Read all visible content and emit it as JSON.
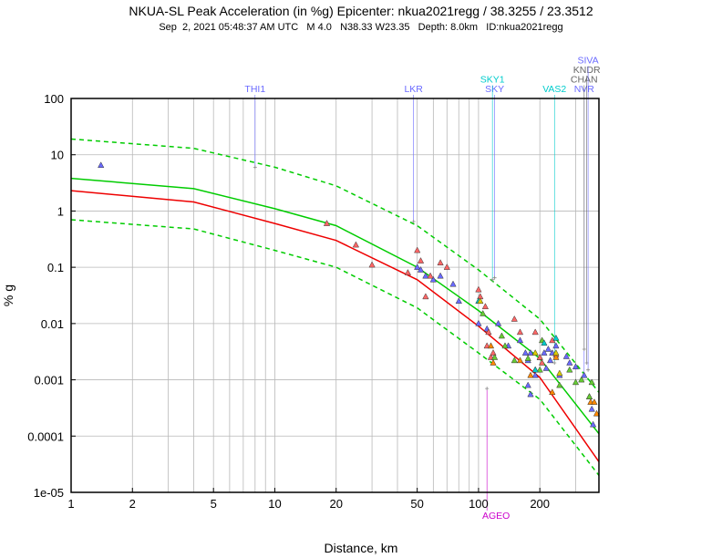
{
  "chart_data": {
    "type": "scatter",
    "title": "NKUA-SL Peak Acceleration (in %g) Epicenter: nkua2021regg / 38.3255 / 23.3512",
    "subtitle": "Sep  2, 2021 05:48:37 AM UTC   M 4.0   N38.33 W23.35   Depth: 8.0km   ID:nkua2021regg",
    "xlabel": "Distance, km",
    "ylabel": "% g",
    "x_scale": "log",
    "y_scale": "log",
    "xlim": [
      1,
      390
    ],
    "ylim": [
      1e-05,
      100
    ],
    "grid": true,
    "x_ticks": [
      {
        "value": 1,
        "label": "1"
      },
      {
        "value": 2,
        "label": "2"
      },
      {
        "value": 5,
        "label": "5"
      },
      {
        "value": 10,
        "label": "10"
      },
      {
        "value": 20,
        "label": "20"
      },
      {
        "value": 50,
        "label": "50"
      },
      {
        "value": 100,
        "label": "100"
      },
      {
        "value": 200,
        "label": "200"
      }
    ],
    "y_ticks": [
      {
        "value": 1e-05,
        "label": "1e-05"
      },
      {
        "value": 0.0001,
        "label": "0.0001"
      },
      {
        "value": 0.001,
        "label": "0.001"
      },
      {
        "value": 0.01,
        "label": "0.01"
      },
      {
        "value": 0.1,
        "label": "0.1"
      },
      {
        "value": 1,
        "label": "1"
      },
      {
        "value": 10,
        "label": "10"
      },
      {
        "value": 100,
        "label": "100"
      }
    ],
    "curves": [
      {
        "color": "#00cc00",
        "dash": false,
        "points": [
          [
            1,
            3.8
          ],
          [
            4,
            2.5
          ],
          [
            10,
            1.1
          ],
          [
            20,
            0.55
          ],
          [
            50,
            0.1
          ],
          [
            100,
            0.017
          ],
          [
            200,
            0.0024
          ],
          [
            390,
            0.00011
          ]
        ]
      },
      {
        "color": "#00cc00",
        "dash": true,
        "points": [
          [
            1,
            19
          ],
          [
            4,
            13
          ],
          [
            10,
            6
          ],
          [
            20,
            2.8
          ],
          [
            50,
            0.55
          ],
          [
            100,
            0.09
          ],
          [
            200,
            0.012
          ],
          [
            390,
            0.0006
          ]
        ]
      },
      {
        "color": "#00cc00",
        "dash": true,
        "points": [
          [
            1,
            0.7
          ],
          [
            4,
            0.48
          ],
          [
            10,
            0.2
          ],
          [
            20,
            0.1
          ],
          [
            50,
            0.019
          ],
          [
            100,
            0.003
          ],
          [
            200,
            0.00045
          ],
          [
            390,
            2e-05
          ]
        ]
      },
      {
        "color": "#ee0000",
        "dash": false,
        "points": [
          [
            1,
            2.3
          ],
          [
            4,
            1.45
          ],
          [
            10,
            0.6
          ],
          [
            20,
            0.3
          ],
          [
            50,
            0.06
          ],
          [
            100,
            0.009
          ],
          [
            200,
            0.0011
          ],
          [
            390,
            3.5e-05
          ]
        ]
      }
    ],
    "labeled_stations": [
      {
        "code": "THI1",
        "distance": 8,
        "pga": 6,
        "color": "#6a6aff",
        "label_row": 0
      },
      {
        "code": "LKR",
        "distance": 48,
        "pga": 0.65,
        "color": "#6a6aff",
        "label_row": 0
      },
      {
        "code": "SKY",
        "distance": 120,
        "pga": 0.065,
        "color": "#6a6aff",
        "label_row": 0
      },
      {
        "code": "SKY1",
        "distance": 117,
        "pga": 0.06,
        "color": "#00cccc",
        "label_row": 1
      },
      {
        "code": "VAS2",
        "distance": 236,
        "pga": 0.002,
        "color": "#00cccc",
        "label_row": 0
      },
      {
        "code": "NVR",
        "distance": 330,
        "pga": 0.0012,
        "color": "#6a6aff",
        "label_row": 0
      },
      {
        "code": "CHAN",
        "distance": 330,
        "pga": 0.0035,
        "color": "#666666",
        "label_row": 1
      },
      {
        "code": "KNDR",
        "distance": 340,
        "pga": 0.002,
        "color": "#666666",
        "label_row": 2
      },
      {
        "code": "SIVA",
        "distance": 345,
        "pga": 0.0015,
        "color": "#6a6aff",
        "label_row": 3
      },
      {
        "code": "AGEO",
        "distance": 110,
        "pga": 0.0007,
        "color": "#cc00cc",
        "label_row": -1
      }
    ],
    "series": [
      {
        "name": "",
        "color": "#6a6aff",
        "points": [
          [
            1.4,
            6.5
          ],
          [
            50,
            0.1
          ],
          [
            52,
            0.09
          ],
          [
            55,
            0.07
          ],
          [
            60,
            0.06
          ],
          [
            65,
            0.07
          ],
          [
            75,
            0.05
          ],
          [
            80,
            0.025
          ],
          [
            100,
            0.01
          ],
          [
            110,
            0.008
          ],
          [
            125,
            0.01
          ],
          [
            140,
            0.004
          ],
          [
            160,
            0.005
          ],
          [
            170,
            0.003
          ],
          [
            175,
            0.0022
          ],
          [
            180,
            0.003
          ],
          [
            190,
            0.0012
          ],
          [
            200,
            0.0025
          ],
          [
            210,
            0.003
          ],
          [
            215,
            0.0016
          ],
          [
            220,
            0.0035
          ],
          [
            225,
            0.0022
          ],
          [
            230,
            0.003
          ],
          [
            240,
            0.004
          ],
          [
            250,
            0.0012
          ],
          [
            270,
            0.0026
          ],
          [
            280,
            0.002
          ],
          [
            300,
            0.0017
          ],
          [
            330,
            0.0012
          ],
          [
            360,
            0.0003
          ],
          [
            365,
            0.00016
          ],
          [
            175,
            0.0008
          ],
          [
            180,
            0.00055
          ]
        ]
      },
      {
        "name": "",
        "color": "#ff6666",
        "points": [
          [
            18,
            0.6
          ],
          [
            25,
            0.25
          ],
          [
            30,
            0.11
          ],
          [
            45,
            0.08
          ],
          [
            50,
            0.2
          ],
          [
            52,
            0.13
          ],
          [
            55,
            0.03
          ],
          [
            58,
            0.07
          ],
          [
            65,
            0.12
          ],
          [
            70,
            0.1
          ],
          [
            100,
            0.04
          ],
          [
            102,
            0.03
          ],
          [
            108,
            0.02
          ],
          [
            110,
            0.004
          ],
          [
            112,
            0.007
          ],
          [
            115,
            0.0025
          ],
          [
            118,
            0.003
          ],
          [
            150,
            0.012
          ],
          [
            160,
            0.007
          ],
          [
            190,
            0.007
          ],
          [
            200,
            0.0025
          ],
          [
            205,
            0.002
          ],
          [
            230,
            0.005
          ],
          [
            240,
            0.0028
          ]
        ]
      },
      {
        "name": "",
        "color": "#ff8800",
        "points": [
          [
            115,
            0.004
          ],
          [
            118,
            0.002
          ],
          [
            160,
            0.0022
          ],
          [
            180,
            0.0012
          ],
          [
            190,
            0.0015
          ],
          [
            230,
            0.0006
          ],
          [
            240,
            0.0025
          ],
          [
            350,
            0.0005
          ],
          [
            355,
            0.0004
          ],
          [
            370,
            0.0004
          ],
          [
            380,
            0.00025
          ]
        ]
      },
      {
        "name": "",
        "color": "#66cc33",
        "points": [
          [
            105,
            0.015
          ],
          [
            120,
            0.0025
          ],
          [
            130,
            0.006
          ],
          [
            135,
            0.004
          ],
          [
            150,
            0.0022
          ],
          [
            175,
            0.0024
          ],
          [
            200,
            0.0015
          ],
          [
            205,
            0.005
          ],
          [
            250,
            0.0008
          ],
          [
            280,
            0.0015
          ],
          [
            300,
            0.0009
          ],
          [
            320,
            0.001
          ],
          [
            350,
            0.0005
          ],
          [
            360,
            0.0009
          ]
        ]
      },
      {
        "name": "",
        "color": "#00cccc",
        "points": [
          [
            100,
            0.025
          ],
          [
            190,
            0.0015
          ],
          [
            210,
            0.0045
          ],
          [
            240,
            0.0055
          ]
        ]
      },
      {
        "name": "",
        "color": "#ddcc00",
        "points": [
          [
            102,
            0.025
          ],
          [
            190,
            0.003
          ],
          [
            240,
            0.003
          ],
          [
            250,
            0.0013
          ]
        ]
      }
    ]
  }
}
